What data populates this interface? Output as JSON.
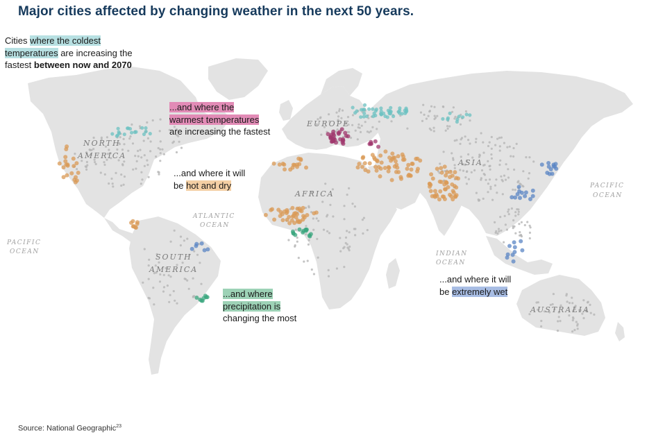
{
  "title": "Major cities affected by changing weather in the next 50 years.",
  "notes": {
    "cold": {
      "pre": "Cities ",
      "hl1": "where the coldest",
      "hl2": "temperatures",
      "mid": " are increasing the",
      "line3_pre": "fastest ",
      "line3_bold": "between now and 2070"
    },
    "warm": {
      "hl1": "...and where the",
      "hl2": "warmest temperatures",
      "post": "are increasing the fastest"
    },
    "dry": {
      "line1": "...and where it will",
      "pre": "be ",
      "hl": "hot and dry"
    },
    "prec": {
      "hl1": "...and where",
      "hl2": "precipitation is",
      "post": "changing the most"
    },
    "wet": {
      "line1": "...and where it will",
      "pre": "be ",
      "hl": "extremely wet"
    }
  },
  "labels": {
    "north_america": [
      "NORTH",
      "AMERICA"
    ],
    "south_america": [
      "SOUTH",
      "AMERICA"
    ],
    "europe": "EUROPE",
    "africa": "AFRICA",
    "asia": "ASIA",
    "australia": "AUSTRALIA",
    "pacific_left": [
      "PACIFIC",
      "OCEAN"
    ],
    "pacific_right": [
      "PACIFIC",
      "OCEAN"
    ],
    "atlantic": [
      "ATLANTIC",
      "OCEAN"
    ],
    "indian": [
      "INDIAN",
      "OCEAN"
    ]
  },
  "colors": {
    "land": "#e3e3e3",
    "cold": "#6cc2c2",
    "warm": "#a0386e",
    "dry": "#d99a55",
    "prec": "#3aa57e",
    "wet": "#5b86c4",
    "other": "#b5b5b5",
    "title": "#163a5c"
  },
  "source": {
    "text": "Source: National Geographic",
    "sup": "23"
  }
}
